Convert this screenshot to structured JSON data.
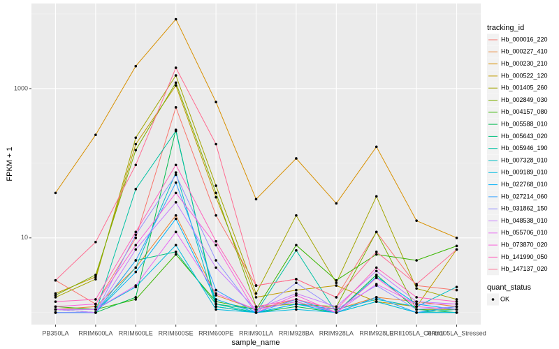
{
  "chart_data": {
    "type": "line",
    "log_y": true,
    "grid": true,
    "x_label": "sample_name",
    "y_label": "FPKM + 1",
    "legend_title": "tracking_id",
    "legend_position": "right",
    "point_legend_title": "quant_status",
    "point_legend_label": "OK",
    "point_color": "#000000",
    "categories": [
      "PB350LA",
      "RRIM600LA",
      "RRIM600LE",
      "RRIM600SE",
      "RRIM600PE",
      "RRIM901LA",
      "RRIM928BA",
      "RRIM928LA",
      "RRIM928LE",
      "RRII105LA_Control",
      "RRII105LA_Stressed"
    ],
    "ylim": [
      0.69,
      13800
    ],
    "yticks": [
      10,
      1000
    ],
    "series": [
      {
        "name": "Hb_000016_220",
        "color": "#F8766D",
        "values": [
          2.7,
          1.3,
          10,
          560,
          20,
          2.3,
          2.8,
          1.6,
          12,
          2.3,
          2.0
        ]
      },
      {
        "name": "Hb_000227_410",
        "color": "#EA8331",
        "values": [
          1.1,
          1.2,
          4,
          20,
          1.7,
          1.1,
          1.5,
          1.1,
          1.6,
          1.4,
          1.2
        ]
      },
      {
        "name": "Hb_000230_210",
        "color": "#D89000",
        "values": [
          40,
          240,
          2000,
          8500,
          660,
          33,
          116,
          29,
          166,
          17,
          10
        ]
      },
      {
        "name": "Hb_000522_120",
        "color": "#C09B00",
        "values": [
          1.8,
          3.0,
          180,
          1100,
          35,
          1.6,
          2.0,
          2.3,
          1.4,
          1.2,
          7.0
        ]
      },
      {
        "name": "Hb_001405_260",
        "color": "#A3A500",
        "values": [
          1.6,
          2.8,
          220,
          1500,
          50,
          1.8,
          20,
          2.5,
          36,
          2.1,
          1.5
        ]
      },
      {
        "name": "Hb_002849_030",
        "color": "#7CAE00",
        "values": [
          1.7,
          3.2,
          150,
          1200,
          40,
          1.2,
          1.3,
          1.2,
          12,
          1.1,
          1.1
        ]
      },
      {
        "name": "Hb_004157_080",
        "color": "#39B600",
        "values": [
          1.2,
          1.1,
          1.5,
          6,
          1.4,
          1.1,
          8,
          2.7,
          6,
          5,
          7.8
        ]
      },
      {
        "name": "Hb_005588_010",
        "color": "#00BB4E",
        "values": [
          1.0,
          1.0,
          1.6,
          280,
          1.2,
          1.0,
          1.2,
          1.0,
          3.2,
          1.1,
          1.0
        ]
      },
      {
        "name": "Hb_005643_020",
        "color": "#00BF7D",
        "values": [
          1.1,
          1.0,
          5,
          6.5,
          1.3,
          1.1,
          1.4,
          1.0,
          1.4,
          1.0,
          1.1
        ]
      },
      {
        "name": "Hb_005946_190",
        "color": "#00C1A3",
        "values": [
          1.0,
          1.0,
          45,
          270,
          1.3,
          1.0,
          6.8,
          1.0,
          1.6,
          1.0,
          1.0
        ]
      },
      {
        "name": "Hb_007328_010",
        "color": "#00BFC4",
        "values": [
          1.0,
          1.0,
          4,
          75,
          1.2,
          1.0,
          1.3,
          1.1,
          1.5,
          1.2,
          2.2
        ]
      },
      {
        "name": "Hb_009189_010",
        "color": "#00BAE0",
        "values": [
          1.1,
          1.1,
          2.2,
          8,
          1.1,
          1.0,
          1.1,
          1.0,
          1.4,
          1.0,
          1.0
        ]
      },
      {
        "name": "Hb_022768_010",
        "color": "#00B0F6",
        "values": [
          1.0,
          1.0,
          3.5,
          18,
          1.5,
          1.0,
          1.3,
          1.0,
          3,
          1.3,
          1.1
        ]
      },
      {
        "name": "Hb_027214_060",
        "color": "#35A2FF",
        "values": [
          1.0,
          1.0,
          5,
          55,
          2.0,
          1.0,
          1.5,
          1.0,
          1.6,
          1.0,
          1.2
        ]
      },
      {
        "name": "Hb_031862_150",
        "color": "#9590FF",
        "values": [
          1.0,
          1.0,
          11,
          70,
          5,
          1.0,
          2.5,
          1.1,
          2.3,
          1.1,
          1.2
        ]
      },
      {
        "name": "Hb_048538_010",
        "color": "#C77CFF",
        "values": [
          1.1,
          1.0,
          7,
          30,
          4,
          1.1,
          1.8,
          1.2,
          3.6,
          1.4,
          1.3
        ]
      },
      {
        "name": "Hb_055706_010",
        "color": "#E76BF3",
        "values": [
          1.1,
          1.1,
          2.3,
          12,
          1.8,
          1.1,
          1.4,
          1.0,
          2.4,
          1.3,
          1.3
        ]
      },
      {
        "name": "Hb_073870_020",
        "color": "#FA62DB",
        "values": [
          1.2,
          1.3,
          8,
          40,
          8,
          1.0,
          1.7,
          1.0,
          2.9,
          1.2,
          1.1
        ]
      },
      {
        "name": "Hb_141990_050",
        "color": "#FF62BC",
        "values": [
          1.4,
          1.5,
          12,
          95,
          9,
          1.2,
          1.5,
          1.1,
          4,
          1.6,
          1.4
        ]
      },
      {
        "name": "Hb_147137_020",
        "color": "#FF6C91",
        "values": [
          2.7,
          8.8,
          95,
          1900,
          180,
          2.3,
          2.8,
          1.6,
          6.5,
          2.4,
          7.0
        ]
      }
    ]
  }
}
